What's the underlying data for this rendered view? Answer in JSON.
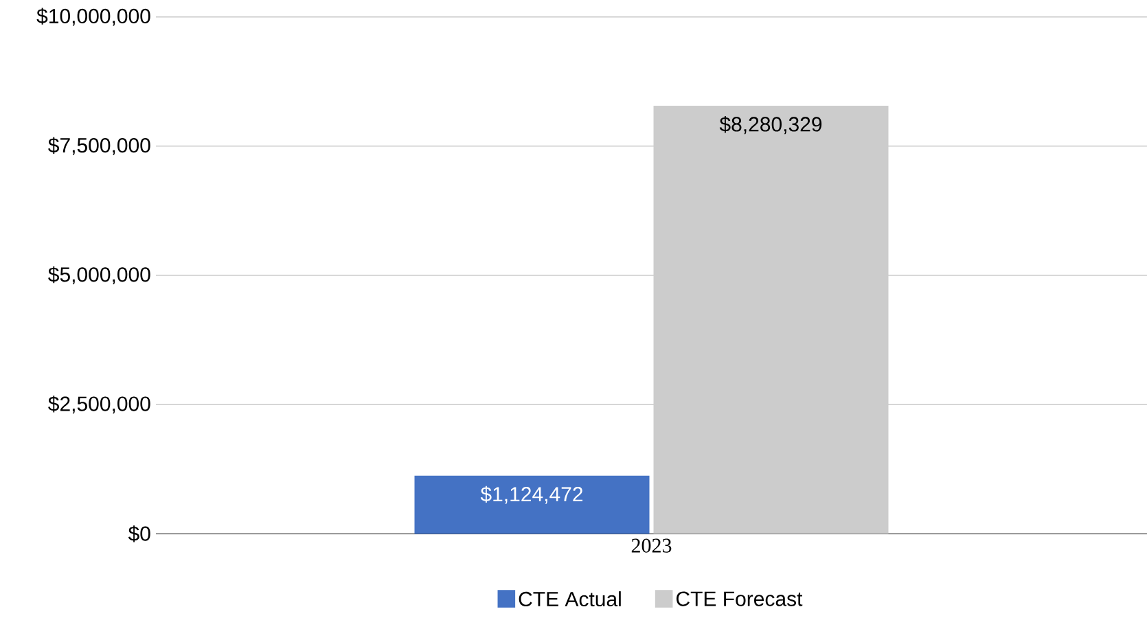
{
  "chart_data": {
    "type": "bar",
    "categories": [
      "2023"
    ],
    "series": [
      {
        "name": "CTE Actual",
        "color": "#4472c4",
        "values": [
          1124472
        ],
        "value_labels": [
          "$1,124,472"
        ]
      },
      {
        "name": "CTE Forecast",
        "color": "#cccccc",
        "values": [
          8280329
        ],
        "value_labels": [
          "$8,280,329"
        ]
      }
    ],
    "ylim": [
      0,
      10000000
    ],
    "yticks": [
      {
        "value": 0,
        "label": "$0"
      },
      {
        "value": 2500000,
        "label": "$2,500,000"
      },
      {
        "value": 5000000,
        "label": "$5,000,000"
      },
      {
        "value": 7500000,
        "label": "$7,500,000"
      },
      {
        "value": 10000000,
        "label": "$10,000,000"
      }
    ],
    "grid": "y",
    "legend": "bottom"
  }
}
